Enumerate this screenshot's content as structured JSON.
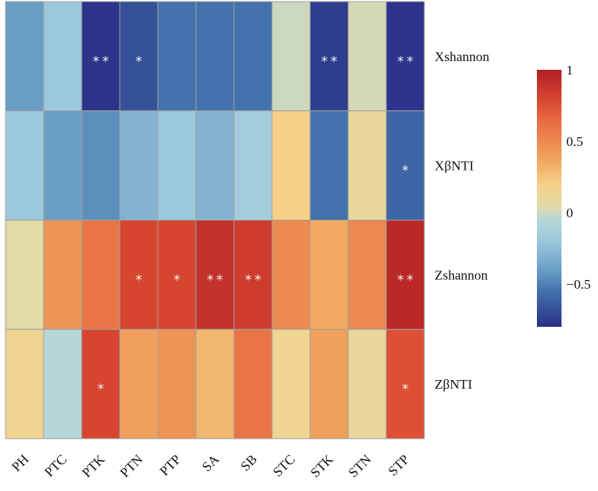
{
  "chart_data": {
    "type": "heatmap",
    "title": "",
    "columns": [
      "PH",
      "PTC",
      "PTK",
      "PTN",
      "PTP",
      "SA",
      "SB",
      "STC",
      "STK",
      "STN",
      "STP"
    ],
    "rows": [
      "Xshannon",
      "XβNTI",
      "Zshannon",
      "ZβNTI"
    ],
    "values": [
      [
        -0.4,
        -0.2,
        -0.78,
        -0.68,
        -0.55,
        -0.55,
        -0.55,
        0.0,
        -0.75,
        0.02,
        -0.78
      ],
      [
        -0.2,
        -0.4,
        -0.45,
        -0.3,
        -0.2,
        -0.3,
        -0.15,
        0.2,
        -0.55,
        0.1,
        -0.6
      ],
      [
        0.05,
        0.45,
        0.6,
        0.8,
        0.8,
        0.9,
        0.85,
        0.5,
        0.35,
        0.5,
        0.95
      ],
      [
        0.15,
        -0.05,
        0.8,
        0.4,
        0.45,
        0.3,
        0.6,
        0.15,
        0.4,
        0.1,
        0.75
      ]
    ],
    "significance": [
      [
        "",
        "",
        "**",
        "*",
        "",
        "",
        "",
        "",
        "**",
        "",
        "**"
      ],
      [
        "",
        "",
        "",
        "",
        "",
        "",
        "",
        "",
        "",
        "",
        "*"
      ],
      [
        "",
        "",
        "",
        "*",
        "*",
        "**",
        "**",
        "",
        "",
        "",
        "**"
      ],
      [
        "",
        "",
        "*",
        "",
        "",
        "",
        "",
        "",
        "",
        "",
        "*"
      ]
    ],
    "colorbar": {
      "range": [
        -0.8,
        1
      ],
      "ticks": [
        1,
        0.5,
        0,
        -0.5
      ],
      "tick_labels": [
        "1",
        "0.5",
        "0",
        "−0.5"
      ],
      "palette": [
        [
          -0.8,
          "#2a3088"
        ],
        [
          -0.55,
          "#4372ac"
        ],
        [
          -0.4,
          "#6a9ec5"
        ],
        [
          -0.2,
          "#9cc8dc"
        ],
        [
          -0.05,
          "#b5d7d8"
        ],
        [
          0.05,
          "#e2dba6"
        ],
        [
          0.2,
          "#f6d088"
        ],
        [
          0.35,
          "#f2aa62"
        ],
        [
          0.5,
          "#ec8a50"
        ],
        [
          0.65,
          "#e76a42"
        ],
        [
          0.8,
          "#d6452f"
        ],
        [
          1,
          "#b01f26"
        ]
      ],
      "placement": "right"
    },
    "grid_color": "#a0a0a0"
  }
}
